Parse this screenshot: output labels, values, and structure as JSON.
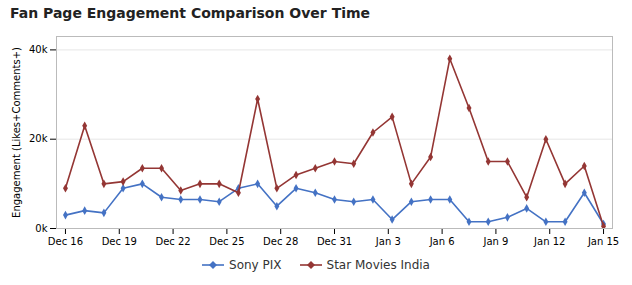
{
  "chart_data": {
    "type": "line",
    "title": "Fan Page Engagement Comparison Over Time",
    "y_label": "Engagement (Likes+Comments+)",
    "x": [
      0,
      1.0714285714285714,
      2.142857142857143,
      3.2142857142857144,
      4.285714285714286,
      5.357142857142857,
      6.428571428571429,
      7.5,
      8.571428571428571,
      9.642857142857142,
      10.714285714285714,
      11.785714285714286,
      12.857142857142858,
      13.928571428571429,
      15,
      16.071428571428573,
      17.142857142857142,
      18.214285714285715,
      19.285714285714285,
      20.357142857142858,
      21.428571428571427,
      22.5,
      23.571428571428573,
      24.642857142857142,
      25.714285714285715,
      26.785714285714285,
      27.857142857142858,
      28.928571428571427,
      30
    ],
    "series": [
      {
        "name": "Sony PIX",
        "color": "#4472c4",
        "marker": "diamond",
        "values": [
          3000,
          4000,
          3500,
          9000,
          10000,
          7000,
          6500,
          6500,
          6000,
          9000,
          10000,
          5000,
          9000,
          8000,
          6500,
          6000,
          6500,
          2000,
          6000,
          6500,
          6500,
          1500,
          1500,
          2500,
          4500,
          1500,
          1500,
          8000,
          1000
        ]
      },
      {
        "name": "Star Movies India",
        "color": "#943634",
        "marker": "diamond",
        "values": [
          9000,
          23000,
          10000,
          10500,
          13500,
          13500,
          8500,
          10000,
          10000,
          8000,
          29000,
          9000,
          12000,
          13500,
          15000,
          14500,
          21500,
          25000,
          10000,
          16000,
          38000,
          27000,
          15000,
          15000,
          7000,
          20000,
          10000,
          14000,
          500
        ]
      }
    ],
    "xlim": [
      -0.5,
      30.5
    ],
    "xticks": [
      {
        "value": 0,
        "label": "Dec 16"
      },
      {
        "value": 3,
        "label": "Dec 19"
      },
      {
        "value": 6,
        "label": "Dec 22"
      },
      {
        "value": 9,
        "label": "Dec 25"
      },
      {
        "value": 12,
        "label": "Dec 28"
      },
      {
        "value": 15,
        "label": "Dec 31"
      },
      {
        "value": 18,
        "label": "Jan 3"
      },
      {
        "value": 21,
        "label": "Jan 6"
      },
      {
        "value": 24,
        "label": "Jan 9"
      },
      {
        "value": 27,
        "label": "Jan 12"
      },
      {
        "value": 30,
        "label": "Jan 15"
      }
    ],
    "ylim": [
      0,
      43000
    ],
    "yticks": [
      {
        "value": 0,
        "label": "0k"
      },
      {
        "value": 20000,
        "label": "20k"
      },
      {
        "value": 40000,
        "label": "40k"
      }
    ],
    "grid": true,
    "legend": "bottom"
  }
}
